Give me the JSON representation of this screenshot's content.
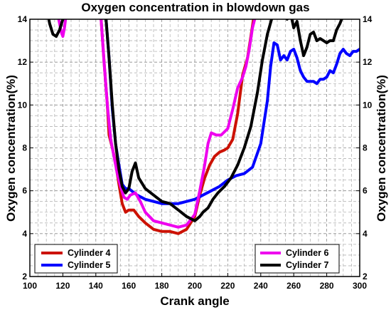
{
  "chart_data": {
    "type": "line",
    "title": "Oxygen concentration in blowdown gas",
    "xlabel": "Crank angle",
    "ylabel": "Oxygen concentration(%)",
    "ylabel_right": "Oxygen concentration(%)",
    "xlim": [
      100,
      300
    ],
    "ylim": [
      2,
      14
    ],
    "x_ticks": [
      "100",
      "120",
      "140",
      "160",
      "180",
      "200",
      "220",
      "240",
      "260",
      "280",
      "300"
    ],
    "y_ticks": [
      "2",
      "4",
      "6",
      "8",
      "10",
      "12",
      "14"
    ],
    "grid": true,
    "grid_style": "dashed",
    "legends": [
      {
        "placement": "bottom-left",
        "entries": [
          "Cylinder 4",
          "Cylinder 5"
        ]
      },
      {
        "placement": "bottom-right",
        "entries": [
          "Cylinder 6",
          "Cylinder 7"
        ]
      }
    ],
    "series": [
      {
        "name": "Cylinder 4",
        "color": "#cc1100",
        "x": [
          143,
          145,
          147,
          148,
          150,
          152,
          154,
          156,
          158,
          160,
          163,
          166,
          170,
          175,
          180,
          185,
          190,
          195,
          200,
          203,
          206,
          209,
          212,
          215,
          218,
          220,
          223,
          226,
          229,
          232,
          234,
          236
        ],
        "y": [
          14.2,
          12.0,
          10.0,
          8.6,
          8.0,
          7.3,
          6.3,
          5.4,
          5.0,
          5.1,
          5.1,
          4.8,
          4.5,
          4.2,
          4.1,
          4.1,
          4.0,
          4.2,
          4.8,
          5.8,
          6.6,
          7.2,
          7.6,
          7.8,
          7.9,
          8.0,
          8.4,
          9.6,
          11.4,
          12.2,
          13.2,
          14.2
        ]
      },
      {
        "name": "Cylinder 5",
        "color": "#0000ff",
        "x": [
          146,
          148,
          150,
          152,
          154,
          156,
          158,
          160,
          165,
          170,
          175,
          180,
          185,
          190,
          195,
          200,
          205,
          210,
          215,
          220,
          225,
          230,
          235,
          240,
          244,
          246,
          248,
          250,
          252,
          254,
          256,
          258,
          260,
          262,
          264,
          266,
          268,
          270,
          272,
          274,
          276,
          278,
          280,
          282,
          284,
          286,
          288,
          290,
          292,
          294,
          296,
          298,
          300
        ],
        "y": [
          14.2,
          12.2,
          9.8,
          8.2,
          7.2,
          6.3,
          6.1,
          6.1,
          5.8,
          5.6,
          5.5,
          5.4,
          5.4,
          5.4,
          5.5,
          5.6,
          5.8,
          6.0,
          6.2,
          6.5,
          6.7,
          6.8,
          7.1,
          8.2,
          10.2,
          11.8,
          12.9,
          12.8,
          12.1,
          12.3,
          12.1,
          12.5,
          12.6,
          12.2,
          11.6,
          11.3,
          11.1,
          11.1,
          11.1,
          11.0,
          11.2,
          11.2,
          11.3,
          11.6,
          11.5,
          11.9,
          12.4,
          12.6,
          12.4,
          12.3,
          12.5,
          12.5,
          12.6
        ]
      },
      {
        "name": "Cylinder 6",
        "color": "#ee00ee",
        "x": [
          117,
          118,
          119,
          120,
          121,
          122,
          143,
          145,
          147,
          149,
          151,
          153,
          155,
          157,
          159,
          161,
          164,
          167,
          170,
          175,
          180,
          185,
          190,
          195,
          200,
          203,
          206,
          208,
          210,
          213,
          216,
          220,
          223,
          226,
          229,
          231,
          233,
          235,
          237
        ],
        "y": [
          14.2,
          13.8,
          13.4,
          13.2,
          13.6,
          14.2,
          14.2,
          12.0,
          10.0,
          8.4,
          7.6,
          6.8,
          6.2,
          5.7,
          5.6,
          5.8,
          5.9,
          5.5,
          5.0,
          4.6,
          4.5,
          4.4,
          4.3,
          4.4,
          4.9,
          6.0,
          7.2,
          8.2,
          8.7,
          8.6,
          8.6,
          8.9,
          9.8,
          10.8,
          11.3,
          11.8,
          12.6,
          13.6,
          14.2
        ]
      },
      {
        "name": "Cylinder 7",
        "color": "#000000",
        "x": [
          111,
          112,
          114,
          116,
          118,
          120,
          121,
          122,
          146,
          148,
          150,
          152,
          154,
          156,
          158,
          160,
          162,
          164,
          166,
          170,
          175,
          180,
          185,
          190,
          195,
          200,
          203,
          205,
          208,
          211,
          214,
          218,
          222,
          226,
          230,
          234,
          238,
          241,
          244,
          248,
          250,
          252,
          254,
          256,
          258,
          260,
          262,
          264,
          266,
          268,
          270,
          272,
          274,
          276,
          278,
          280,
          282,
          284,
          286,
          288,
          290
        ],
        "y": [
          14.2,
          13.8,
          13.3,
          13.2,
          13.5,
          14.0,
          14.4,
          14.8,
          14.2,
          12.2,
          10.0,
          8.2,
          7.0,
          6.2,
          5.9,
          6.1,
          6.9,
          7.3,
          6.6,
          6.1,
          5.8,
          5.5,
          5.4,
          5.1,
          4.8,
          4.6,
          4.8,
          5.0,
          5.2,
          5.6,
          5.9,
          6.2,
          6.6,
          7.2,
          8.0,
          9.0,
          10.6,
          12.1,
          13.3,
          14.4,
          15.0,
          14.6,
          14.8,
          14.0,
          14.3,
          13.6,
          13.9,
          13.0,
          12.3,
          12.7,
          13.3,
          13.4,
          13.0,
          13.1,
          13.0,
          12.9,
          13.0,
          13.0,
          13.5,
          13.8,
          14.2
        ]
      }
    ]
  }
}
